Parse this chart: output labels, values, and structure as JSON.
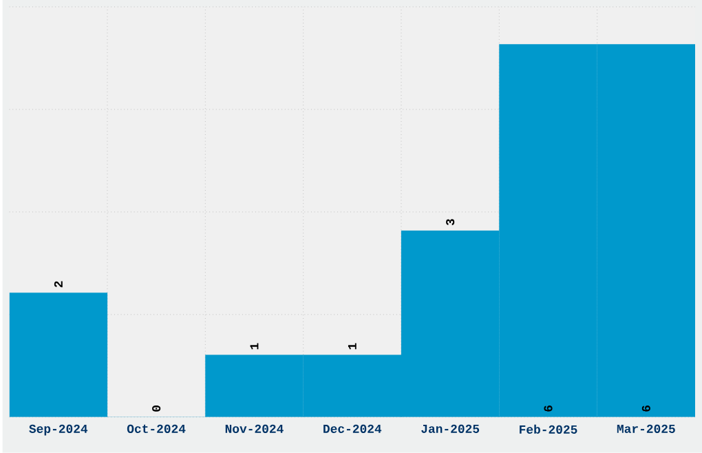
{
  "chart_data": {
    "type": "bar",
    "categories": [
      "Sep-2024",
      "Oct-2024",
      "Nov-2024",
      "Dec-2024",
      "Jan-2025",
      "Feb-2025",
      "Mar-2025"
    ],
    "values": [
      2,
      0,
      1,
      1,
      3,
      6,
      6
    ],
    "color": "#0099cc",
    "data_labels": true,
    "ylim": [
      0,
      6.6
    ],
    "yticks": [
      {
        "value": 0,
        "label": null
      },
      {
        "value": 1.65,
        "label": null
      },
      {
        "value": 3.3,
        "label": null
      },
      {
        "value": 4.95,
        "label": null
      },
      {
        "value": 6.6,
        "label": null
      }
    ],
    "tick_labels": "x",
    "grid": true
  }
}
